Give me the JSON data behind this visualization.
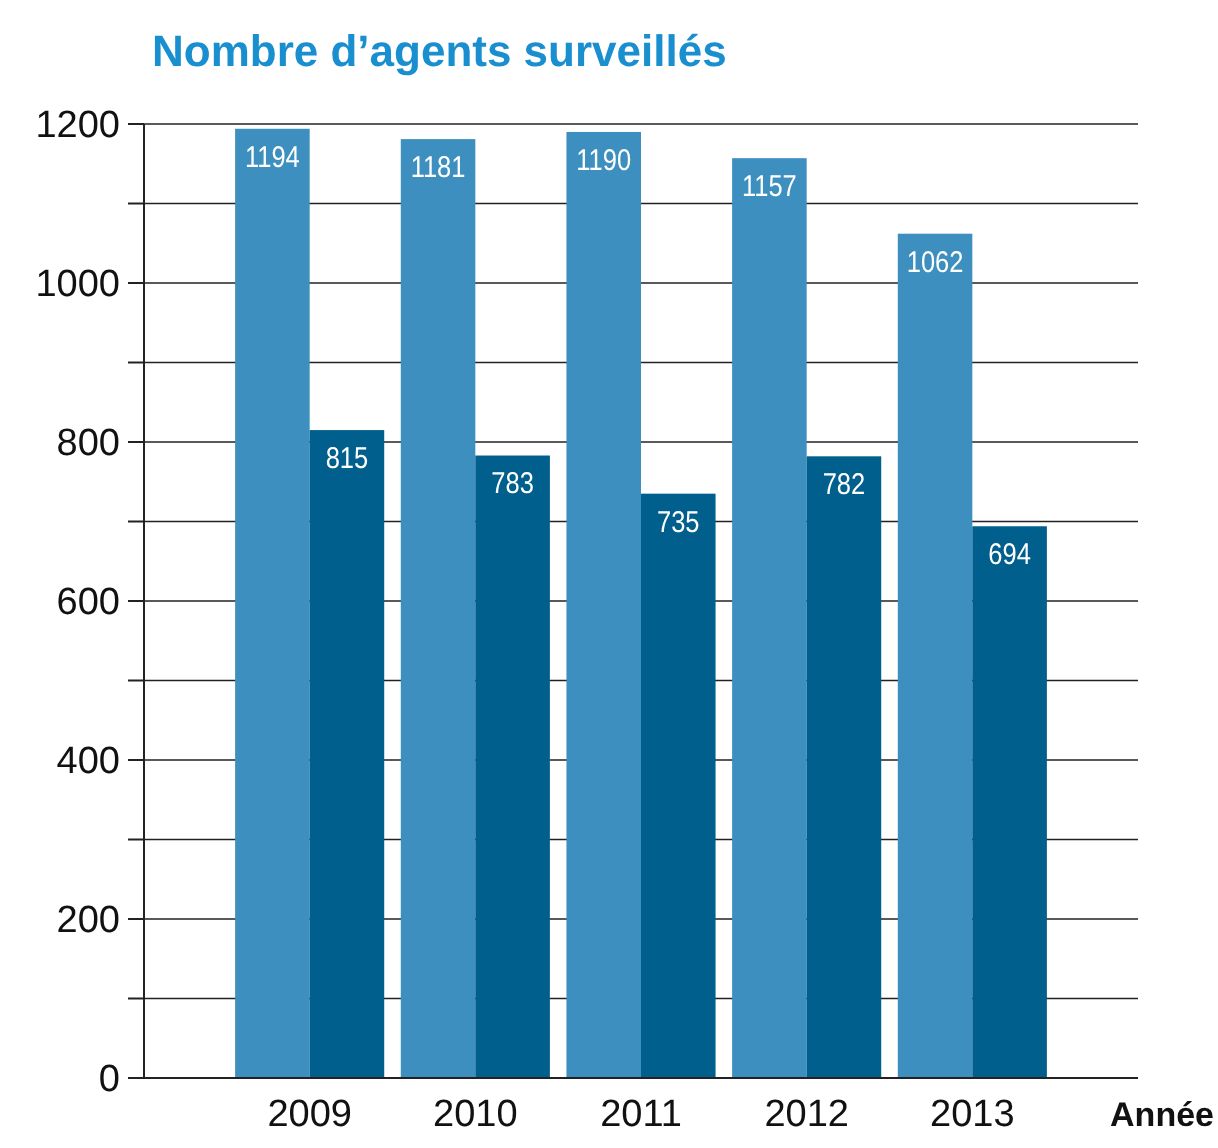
{
  "chart_data": {
    "type": "bar",
    "title": "Nombre d’agents surveillés",
    "xlabel": "Année",
    "categories": [
      "2009",
      "2010",
      "2011",
      "2012",
      "2013"
    ],
    "series": [
      {
        "color": "#3d8fbf",
        "values": [
          1194,
          1181,
          1190,
          1157,
          1062
        ]
      },
      {
        "color": "#005f8d",
        "values": [
          815,
          783,
          735,
          782,
          694
        ]
      }
    ],
    "ylim": [
      0,
      1200
    ],
    "yticks": [
      0,
      {
        "value": 100,
        "label": null
      },
      200,
      {
        "value": 300,
        "label": null
      },
      400,
      {
        "value": 500,
        "label": null
      },
      600,
      {
        "value": 700,
        "label": null
      },
      800,
      {
        "value": 900,
        "label": null
      },
      1000,
      {
        "value": 1100,
        "label": null
      },
      1200
    ],
    "grid": true,
    "data_labels": true
  }
}
